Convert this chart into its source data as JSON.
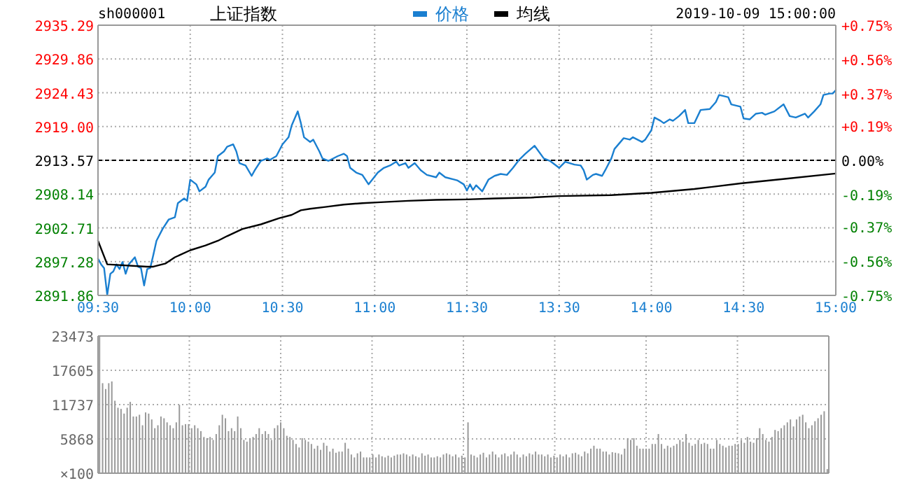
{
  "chart_data": [
    {
      "type": "line",
      "title": "上证指数",
      "subtitle": "sh000001",
      "legend": "top",
      "grid": true,
      "marker": "none",
      "line_style": "solid",
      "xlim": [
        9.5,
        11.5
      ],
      "xticks": [
        {
          "value": 9.5,
          "label": "09:30"
        },
        {
          "value": 10,
          "label": "10:00"
        },
        {
          "value": 10.5,
          "label": "10:30"
        },
        {
          "value": 11,
          "label": "11:00"
        },
        {
          "value": 11.5,
          "label": "11:30"
        }
      ],
      "ylim": [
        2891.86,
        2935.29
      ],
      "yticks": [
        2891.86,
        2897.28,
        2902.71,
        2908.14,
        2913.57,
        {
          "value": 2919,
          "label": "2919.00"
        },
        2924.43,
        2929.86,
        2935.29
      ],
      "ref_lines": [
        {
          "axis": "y",
          "value": 2913.57,
          "color": "#000000",
          "line_style": "dashed"
        }
      ],
      "series": [
        {
          "name": "价格",
          "color": "#1a7fd0",
          "x": [
            9.5,
            9.517,
            9.533,
            9.55,
            9.567,
            9.583,
            9.6,
            9.617,
            9.633,
            9.65,
            9.667,
            9.7,
            9.717,
            9.733,
            9.75,
            9.767,
            9.783,
            9.8,
            9.817,
            9.85,
            9.883,
            9.917,
            9.933,
            9.967,
            9.983,
            10,
            10.033,
            10.05,
            10.083,
            10.1,
            10.133,
            10.15,
            10.183,
            10.2,
            10.233,
            10.25,
            10.267,
            10.3,
            10.333,
            10.35,
            10.383,
            10.417,
            10.433,
            10.467,
            10.5,
            10.533,
            10.55,
            10.583,
            10.6,
            10.617,
            10.65,
            10.667,
            10.7,
            10.717,
            10.75,
            10.8,
            10.833,
            10.85,
            10.867,
            10.9,
            10.933,
            10.967,
            11.017,
            11.05,
            11.083,
            11.117,
            11.133,
            11.167,
            11.183,
            11.217,
            11.25,
            11.283,
            11.333,
            11.35,
            11.383,
            11.433,
            11.45,
            11.483,
            11.5
          ],
          "values": [
            2897.76,
            2896.85,
            2896.25,
            2891.94,
            2895.34,
            2895.72,
            2896.85,
            2896.1,
            2897.23,
            2895.34,
            2896.85,
            2897.99,
            2896.48,
            2896.25,
            2893.45,
            2896.1,
            2896.25,
            2898.37,
            2900.64,
            2902.53,
            2904.04,
            2904.42,
            2906.69,
            2907.44,
            2907.06,
            2910.47,
            2909.71,
            2908.58,
            2909.33,
            2910.47,
            2911.6,
            2914.25,
            2915.01,
            2915.76,
            2916.14,
            2915.01,
            2913.12,
            2912.74,
            2911.07,
            2911.98,
            2913.49,
            2913.87,
            2913.65,
            2914.25,
            2916.14,
            2917.28,
            2919.17,
            2921.44,
            2919.55,
            2917.28,
            2916.52,
            2916.9,
            2915.01,
            2913.87,
            2913.49,
            2914.25,
            2914.63,
            2914.25,
            2912.36,
            2911.6,
            2911.23,
            2909.71,
            2911.6,
            2912.36,
            2912.74,
            2913.34,
            2912.74,
            2913.12,
            2912.36,
            2913.12,
            2911.98,
            2911.23,
            2910.85,
            2911.6,
            2910.85,
            2910.47,
            2910.32,
            2909.71,
            2908.73
          ]
        },
        {
          "name": "均线",
          "color": "#000000",
          "x": [
            9.5,
            9.55,
            9.767,
            9.8,
            9.867,
            9.917,
            10,
            10.083,
            10.15,
            10.2,
            10.283,
            10.383,
            10.483,
            10.55,
            10.6,
            10.65,
            10.733,
            10.833,
            10.933,
            11.033,
            11.183,
            11.333,
            11.5
          ],
          "values": [
            2900.64,
            2896.85,
            2896.48,
            2896.48,
            2897.0,
            2897.99,
            2899.12,
            2899.88,
            2900.64,
            2901.39,
            2902.53,
            2903.28,
            2904.27,
            2904.8,
            2905.55,
            2905.78,
            2906.08,
            2906.46,
            2906.69,
            2906.84,
            2907.06,
            2907.22,
            2907.29
          ]
        }
      ]
    },
    {
      "type": "line",
      "annotations": [
        "2019-10-09 15:00:00"
      ],
      "grid": true,
      "marker": "none",
      "line_style": "solid",
      "tick_labels": "x",
      "xlim": [
        13,
        15
      ],
      "xticks": [
        {
          "value": 13.5,
          "label": "13:30"
        },
        {
          "value": 14,
          "label": "14:00"
        },
        {
          "value": 14.5,
          "label": "14:30"
        },
        {
          "value": 15,
          "label": "15:00"
        }
      ],
      "ylim": [
        2891.86,
        2935.29
      ],
      "yticks": [
        2891.86,
        2897.28,
        2902.71,
        2908.14,
        2913.57,
        2919,
        2924.43,
        2929.86,
        2935.29
      ],
      "y2lim": [
        -0.75,
        0.75
      ],
      "y2ticks": [
        {
          "value": -0.75,
          "label": "-0.75%"
        },
        {
          "value": -0.56,
          "label": "-0.56%"
        },
        {
          "value": -0.37,
          "label": "-0.37%"
        },
        {
          "value": -0.19,
          "label": "-0.19%"
        },
        {
          "value": 0,
          "label": "0.00%"
        },
        {
          "value": 0.19,
          "label": "+0.19%"
        },
        {
          "value": 0.37,
          "label": "+0.37%"
        },
        {
          "value": 0.56,
          "label": "+0.56%"
        },
        {
          "value": 0.75,
          "label": "+0.75%"
        }
      ],
      "ref_lines": [
        {
          "axis": "y",
          "value": 2913.57,
          "color": "#000000",
          "line_style": "dashed"
        }
      ],
      "series": [
        {
          "color": "#1a7fd0",
          "x": [
            13,
            13.017,
            13.033,
            13.05,
            13.083,
            13.117,
            13.15,
            13.183,
            13.217,
            13.25,
            13.283,
            13.317,
            13.367,
            13.417,
            13.45,
            13.5,
            13.533,
            13.583,
            13.617,
            13.633,
            13.65,
            13.683,
            13.7,
            13.733,
            13.75,
            13.783,
            13.8,
            13.85,
            13.883,
            13.9,
            13.95,
            13.967,
            14,
            14.017,
            14.05,
            14.067,
            14.1,
            14.117,
            14.15,
            14.183,
            14.2,
            14.233,
            14.267,
            14.317,
            14.35,
            14.367,
            14.417,
            14.433,
            14.483,
            14.5,
            14.533,
            14.567,
            14.6,
            14.617,
            14.667,
            14.717,
            14.75,
            14.783,
            14.833,
            14.85,
            14.883,
            14.917,
            14.933,
            14.967,
            14.983,
            15
          ],
          "values": [
            2908.73,
            2909.71,
            2908.8,
            2909.56,
            2908.58,
            2910.47,
            2911.07,
            2911.38,
            2911.23,
            2912.36,
            2913.65,
            2914.63,
            2915.91,
            2913.87,
            2913.49,
            2912.36,
            2913.34,
            2912.89,
            2912.74,
            2911.98,
            2910.47,
            2911.23,
            2911.38,
            2911.07,
            2911.98,
            2913.87,
            2915.39,
            2917.13,
            2916.9,
            2917.28,
            2916.52,
            2916.9,
            2918.41,
            2920.45,
            2919.92,
            2919.55,
            2920.15,
            2919.92,
            2920.68,
            2921.66,
            2919.55,
            2919.55,
            2921.66,
            2921.81,
            2922.95,
            2924.08,
            2923.71,
            2922.57,
            2922.19,
            2920.3,
            2920.15,
            2921.06,
            2921.21,
            2920.91,
            2921.44,
            2922.57,
            2920.68,
            2920.45,
            2921.06,
            2920.45,
            2921.44,
            2922.57,
            2924.08,
            2924.31,
            2924.31,
            2924.84
          ]
        },
        {
          "color": "#000000",
          "x": [
            13,
            13.15,
            13.35,
            13.5,
            13.783,
            14,
            14.233,
            14.483,
            14.733,
            15
          ],
          "values": [
            2907.29,
            2907.44,
            2907.59,
            2907.82,
            2907.97,
            2908.35,
            2908.96,
            2909.86,
            2910.62,
            2911.45
          ]
        }
      ]
    },
    {
      "type": "bar",
      "grid": true,
      "tick_labels": "y",
      "color": "#999999",
      "ylabel": "×100",
      "categories": [
        null,
        null,
        null,
        null,
        null,
        null,
        null,
        null,
        null,
        null,
        null,
        null,
        null,
        null,
        null,
        null,
        null,
        null,
        null,
        null,
        null,
        null,
        null,
        null,
        null,
        null,
        null,
        null,
        null,
        null,
        null,
        null,
        null,
        null,
        null,
        null,
        null,
        null,
        null,
        null,
        null,
        null,
        null,
        null,
        null,
        null,
        null,
        null,
        null,
        null,
        null,
        null,
        null,
        null,
        null,
        null,
        null,
        null,
        null,
        null,
        null,
        null,
        null,
        null,
        null,
        null,
        null,
        null,
        null,
        null,
        null,
        null,
        null,
        null,
        null,
        null,
        null,
        null,
        null,
        null,
        null,
        null,
        null,
        null,
        null,
        null,
        null,
        null,
        null,
        null,
        null,
        null,
        null,
        null,
        null,
        null,
        null,
        null,
        null,
        null,
        null,
        null,
        null,
        null,
        null,
        null,
        null,
        null,
        null,
        null,
        null,
        null,
        null,
        null,
        null,
        null,
        null,
        null,
        null,
        null,
        null,
        null,
        null,
        null,
        null,
        null,
        null,
        null,
        null,
        null,
        null,
        null,
        null,
        null,
        null,
        null,
        null,
        null,
        null,
        null,
        null,
        null,
        null,
        null,
        null,
        null,
        null,
        null,
        null,
        null,
        null,
        null,
        null,
        null,
        null,
        null,
        null,
        null,
        null,
        null,
        null,
        null,
        null,
        null,
        null,
        null,
        null,
        null,
        null,
        null,
        null,
        null,
        null,
        null,
        null,
        null,
        null,
        null,
        null,
        null,
        null,
        null,
        null,
        null,
        null,
        null,
        null,
        null,
        null,
        null,
        null,
        null,
        null,
        null,
        null,
        null,
        null,
        null,
        null,
        null,
        null,
        null,
        null,
        null,
        null,
        null,
        null,
        null,
        null,
        null,
        null,
        null,
        null,
        null,
        null,
        null,
        null,
        null,
        null,
        null,
        null,
        null,
        null,
        null,
        null,
        null,
        null,
        null,
        null,
        null,
        null,
        null,
        null,
        null,
        null,
        null,
        null,
        null
      ],
      "ylim": [
        0,
        23473
      ],
      "yticks": [
        {
          "value": 0,
          "label": null
        },
        5868,
        11737,
        17605,
        23473
      ],
      "values": [
        23400,
        15400,
        14400,
        15400,
        15700,
        12400,
        11200,
        11000,
        10200,
        11200,
        12200,
        9700,
        9700,
        10000,
        8200,
        10400,
        10200,
        9200,
        7700,
        8200,
        9700,
        9400,
        8700,
        8200,
        7700,
        8700,
        11700,
        8200,
        8400,
        8400,
        7700,
        8200,
        7700,
        7200,
        6200,
        6000,
        6200,
        5700,
        6700,
        8200,
        10000,
        9400,
        7200,
        7700,
        7200,
        9700,
        7700,
        5700,
        5400,
        6000,
        6200,
        6700,
        7700,
        6700,
        7200,
        6700,
        5700,
        7700,
        8200,
        8700,
        7700,
        6400,
        6200,
        5700,
        5000,
        4400,
        6000,
        5700,
        5400,
        5000,
        4200,
        4700,
        4000,
        5200,
        4700,
        3700,
        4200,
        3500,
        3700,
        3700,
        5200,
        4200,
        3200,
        2700,
        3400,
        3700,
        2700,
        2700,
        2700,
        3200,
        2700,
        3200,
        2900,
        2700,
        3000,
        2700,
        3000,
        3200,
        3200,
        3400,
        3200,
        2900,
        3200,
        2900,
        2700,
        3400,
        3000,
        3200,
        2700,
        2700,
        2900,
        2700,
        3200,
        3400,
        3200,
        2900,
        3200,
        2700,
        3000,
        2700,
        8700,
        3200,
        3000,
        2700,
        3200,
        3500,
        2700,
        3200,
        3700,
        3200,
        2700,
        3200,
        3400,
        2900,
        3200,
        3700,
        3200,
        2700,
        3200,
        2900,
        3400,
        3200,
        3700,
        3200,
        3200,
        2900,
        3200,
        2700,
        3000,
        2700,
        3200,
        2900,
        3200,
        2700,
        3400,
        3500,
        3200,
        2900,
        3700,
        3400,
        4200,
        4700,
        4200,
        4200,
        3700,
        3700,
        3200,
        3600,
        3500,
        3400,
        3200,
        4200,
        6000,
        5700,
        6000,
        4700,
        4200,
        4200,
        4200,
        4200,
        5000,
        5000,
        6700,
        5000,
        4200,
        4700,
        4400,
        4700,
        5000,
        5700,
        5400,
        6700,
        5200,
        4700,
        5000,
        5700,
        5000,
        5200,
        5000,
        4200,
        4200,
        5700,
        5000,
        4700,
        4400,
        4700,
        4700,
        5000,
        5000,
        5700,
        5200,
        6200,
        5400,
        5200,
        6000,
        7700,
        6700,
        5700,
        5400,
        6200,
        7400,
        7200,
        7700,
        8200,
        8700,
        9200,
        8000,
        9200,
        9700,
        10000,
        8700,
        7700,
        8200,
        8900,
        9400,
        10000,
        10600,
        700
      ]
    }
  ]
}
